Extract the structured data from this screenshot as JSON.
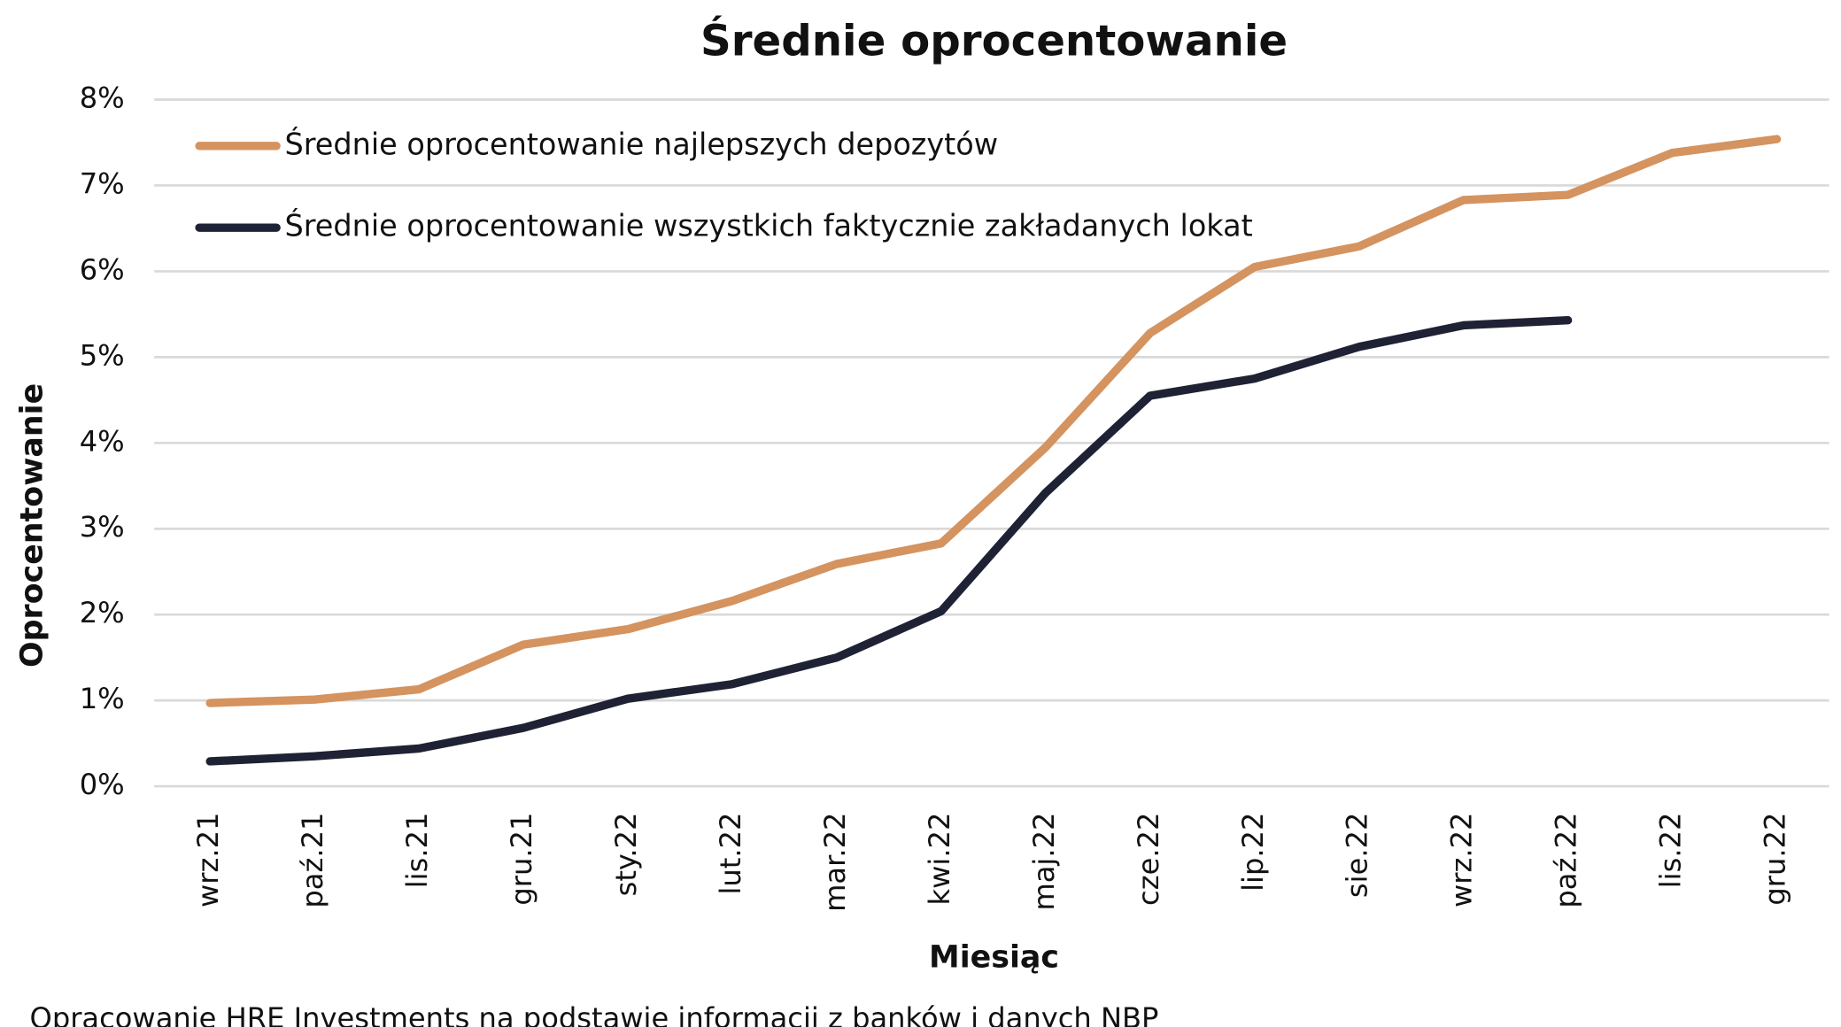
{
  "chart_data": {
    "type": "line",
    "title": "Średnie oprocentowanie",
    "x_label": "Miesiąc",
    "y_label": "Oprocentowanie",
    "source": "Opracowanie HRE Investments na podstawie informacji z banków i danych NBP",
    "categories": [
      "wrz.21",
      "paź.21",
      "lis.21",
      "gru.21",
      "sty.22",
      "lut.22",
      "mar.22",
      "kwi.22",
      "maj.22",
      "cze.22",
      "lip.22",
      "sie.22",
      "wrz.22",
      "paź.22",
      "lis.22",
      "gru.22"
    ],
    "series": [
      {
        "name": "Średnie oprocentowanie najlepszych depozytów",
        "color": "#d4935f",
        "values": [
          0.97,
          1.01,
          1.13,
          1.65,
          1.83,
          2.16,
          2.59,
          2.83,
          3.95,
          5.28,
          6.05,
          6.29,
          6.83,
          6.89,
          7.38,
          7.54
        ]
      },
      {
        "name": "Średnie oprocentowanie wszystkich faktycznie zakładanych lokat",
        "color": "#1f2235",
        "values": [
          0.29,
          0.35,
          0.44,
          0.68,
          1.02,
          1.19,
          1.5,
          2.04,
          3.42,
          4.55,
          4.75,
          5.12,
          5.37,
          5.43,
          null,
          null
        ]
      }
    ],
    "ylim": [
      0,
      8
    ],
    "yticks": [
      {
        "value": 0,
        "label": "0%"
      },
      {
        "value": 1,
        "label": "1%"
      },
      {
        "value": 2,
        "label": "2%"
      },
      {
        "value": 3,
        "label": "3%"
      },
      {
        "value": 4,
        "label": "4%"
      },
      {
        "value": 5,
        "label": "5%"
      },
      {
        "value": 6,
        "label": "6%"
      },
      {
        "value": 7,
        "label": "7%"
      },
      {
        "value": 8,
        "label": "8%"
      }
    ],
    "grid": true,
    "legend": "top-left"
  }
}
